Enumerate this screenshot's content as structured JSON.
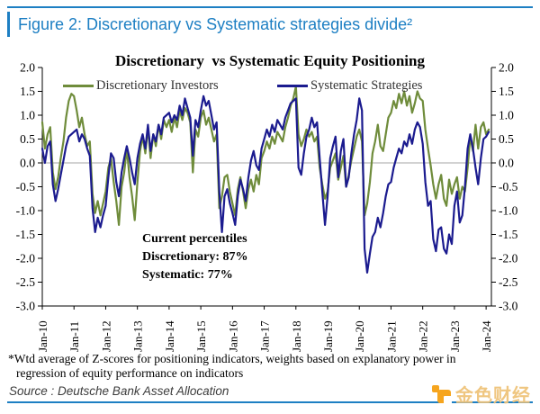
{
  "header": {
    "figure_title": "Figure 2: Discretionary vs Systematic strategies divide²"
  },
  "chart_data": {
    "type": "line",
    "title": "Discretionary  vs Systematic Equity Positioning",
    "legend": [
      "Discretionary Investors",
      "Systematic Strategies"
    ],
    "legend_position": "top",
    "grid": "zero-line-only",
    "ylim": [
      -3.0,
      2.0
    ],
    "y_tick_labels": [
      "2.0",
      "1.5",
      "1.0",
      "0.5",
      "0.0",
      "-0.5",
      "-1.0",
      "-1.5",
      "-2.0",
      "-2.5",
      "-3.0"
    ],
    "x_tick_labels": [
      "Jan-10",
      "Jan-11",
      "Jan-12",
      "Jan-13",
      "Jan-14",
      "Jan-15",
      "Jan-16",
      "Jan-17",
      "Jan-18",
      "Jan-19",
      "Jan-20",
      "Jan-21",
      "Jan-22",
      "Jan-23",
      "Jan-24"
    ],
    "x_interval": "monthly",
    "x_months_total": 170,
    "annotation_lines": [
      "Current percentiles",
      "Discretionary: 87%",
      "Systematic: 77%"
    ],
    "series": [
      {
        "name": "Discretionary Investors",
        "color": "#6f8c3b",
        "values": [
          0.85,
          0.3,
          0.6,
          0.75,
          -0.2,
          -0.55,
          -0.3,
          0.1,
          0.45,
          0.95,
          1.3,
          1.45,
          1.4,
          1.1,
          0.75,
          0.95,
          0.6,
          0.35,
          0.45,
          -0.65,
          -1.05,
          -0.8,
          -1.1,
          -0.85,
          -0.6,
          -0.1,
          0.1,
          -0.4,
          -0.8,
          -1.3,
          -0.5,
          -0.2,
          0.3,
          -0.3,
          -0.7,
          -1.2,
          -0.4,
          0.25,
          0.55,
          0.2,
          0.75,
          0.1,
          0.6,
          0.35,
          0.8,
          0.5,
          0.9,
          0.75,
          0.9,
          0.65,
          0.95,
          0.75,
          1.1,
          0.9,
          1.15,
          1.05,
          0.85,
          -0.2,
          0.7,
          0.55,
          0.95,
          1.1,
          0.8,
          0.95,
          0.7,
          0.45,
          0.6,
          -0.95,
          -0.7,
          -0.3,
          -0.25,
          -0.6,
          -0.85,
          -1.1,
          -0.55,
          -0.3,
          -0.6,
          -0.95,
          -0.55,
          -0.35,
          -0.6,
          -0.25,
          -0.45,
          0.1,
          0.25,
          0.45,
          0.3,
          0.55,
          0.4,
          0.65,
          0.55,
          0.45,
          0.75,
          0.95,
          1.2,
          1.35,
          1.6,
          0.6,
          0.35,
          0.5,
          0.7,
          0.55,
          0.65,
          0.45,
          0.55,
          -0.1,
          -0.45,
          -0.75,
          -0.6,
          -0.1,
          0.05,
          0.2,
          -0.35,
          -0.1,
          0.15,
          -0.5,
          -0.25,
          0.05,
          0.3,
          0.55,
          0.7,
          0.45,
          -1.1,
          -0.85,
          -0.4,
          0.2,
          0.45,
          0.8,
          0.35,
          0.25,
          0.6,
          0.95,
          1.05,
          1.3,
          1.15,
          1.45,
          1.25,
          1.5,
          1.2,
          1.4,
          1.05,
          1.25,
          1.5,
          1.35,
          1.3,
          0.7,
          0.3,
          -0.05,
          -0.45,
          -0.75,
          -0.45,
          -0.25,
          -0.75,
          -0.9,
          -0.35,
          -0.65,
          -0.45,
          -0.3,
          -0.75,
          -0.5,
          -0.6,
          -0.1,
          0.55,
          0.25,
          0.8,
          0.3,
          0.75,
          0.85,
          0.6,
          0.7
        ]
      },
      {
        "name": "Systematic Strategies",
        "color": "#1b1b8f",
        "values": [
          0.3,
          0.0,
          0.35,
          0.45,
          -0.45,
          -0.8,
          -0.55,
          -0.25,
          0.05,
          0.35,
          0.55,
          0.6,
          0.65,
          0.7,
          0.45,
          0.6,
          0.5,
          0.3,
          0.15,
          -0.95,
          -1.45,
          -1.15,
          -1.35,
          -1.1,
          -0.9,
          -0.3,
          0.2,
          0.1,
          -0.4,
          -0.7,
          -0.2,
          0.1,
          0.35,
          0.1,
          -0.2,
          -0.45,
          0.1,
          0.4,
          0.6,
          0.3,
          0.8,
          0.25,
          0.6,
          0.45,
          0.8,
          0.6,
          0.95,
          1.0,
          1.05,
          0.85,
          1.0,
          0.9,
          1.2,
          1.0,
          1.35,
          1.15,
          0.95,
          0.15,
          0.9,
          0.75,
          1.1,
          1.4,
          1.2,
          1.3,
          1.0,
          0.7,
          0.85,
          -0.6,
          -1.45,
          -0.7,
          -0.55,
          -0.85,
          -1.05,
          -1.3,
          -0.7,
          -0.35,
          -0.55,
          -0.8,
          -0.3,
          0.05,
          0.25,
          -0.05,
          -0.15,
          0.3,
          0.5,
          0.7,
          0.55,
          0.8,
          0.65,
          0.9,
          0.8,
          0.7,
          0.95,
          1.1,
          1.25,
          1.3,
          1.35,
          -0.1,
          -0.25,
          0.2,
          0.55,
          0.7,
          0.95,
          0.75,
          0.85,
          0.1,
          -0.6,
          -1.3,
          -0.7,
          0.1,
          0.35,
          0.55,
          -0.3,
          0.25,
          0.5,
          -0.5,
          -0.3,
          0.2,
          0.6,
          0.9,
          1.35,
          1.1,
          -1.8,
          -2.3,
          -1.9,
          -1.55,
          -1.45,
          -1.15,
          -1.35,
          -1.05,
          -0.7,
          -0.45,
          -0.4,
          -0.1,
          0.1,
          0.3,
          0.2,
          0.45,
          0.35,
          0.6,
          0.4,
          0.7,
          0.85,
          0.75,
          0.4,
          -0.4,
          -0.9,
          -0.8,
          -1.6,
          -1.85,
          -1.4,
          -1.35,
          -1.8,
          -1.9,
          -1.5,
          -1.7,
          -0.9,
          -0.6,
          -1.25,
          -1.1,
          -0.5,
          0.3,
          0.6,
          0.3,
          -0.1,
          -0.45,
          0.1,
          0.5,
          0.55,
          0.65
        ]
      }
    ]
  },
  "footnote": {
    "line1": "*Wtd average of Z-scores for positioning indicators, weights based on explanatory power in",
    "line2": "regression of equity performance on indicators"
  },
  "footer": {
    "source": "Source : Deutsche Bank Asset Allocation",
    "watermark_text": "金色财经"
  },
  "colors": {
    "accent_blue": "#1d7fc3",
    "discretionary_green": "#6f8c3b",
    "systematic_navy": "#1b1b8f",
    "zero_line_gray": "#a6a6a6",
    "watermark_orange": "#f6a51e",
    "watermark_gold": "#efc37a"
  }
}
